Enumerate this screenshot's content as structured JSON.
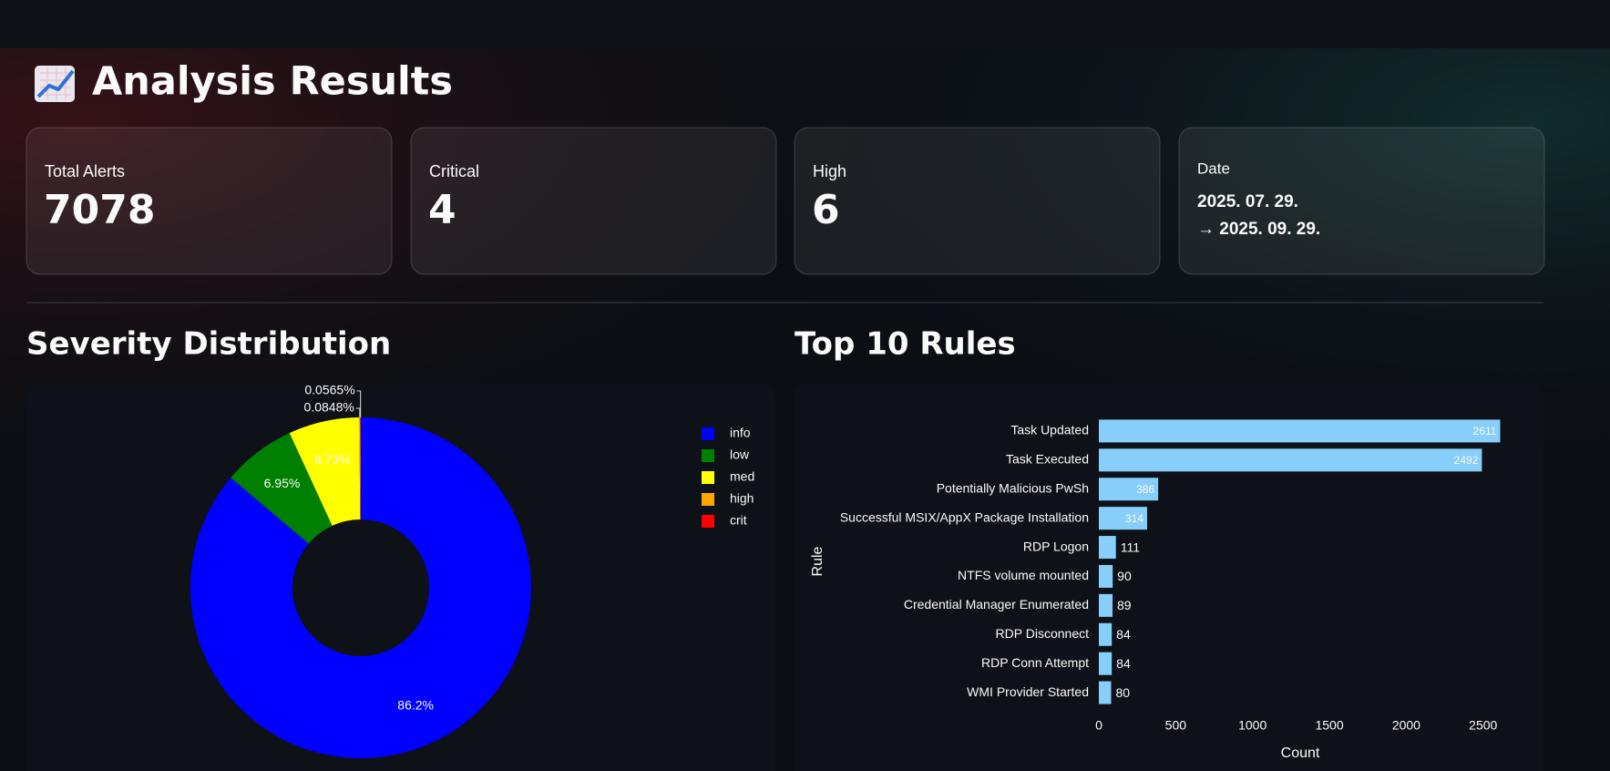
{
  "header": {
    "title": "Analysis Results"
  },
  "metrics": [
    {
      "label": "Total Alerts",
      "value": 7078
    },
    {
      "label": "Critical",
      "value": 4
    },
    {
      "label": "High",
      "value": 6
    }
  ],
  "date": {
    "label": "Date",
    "lines": [
      "2025. 07. 29.",
      "→ 2025. 09. 29."
    ]
  },
  "chart_data": [
    {
      "type": "pie",
      "title": "Severity Distribution",
      "categories": [
        "info",
        "low",
        "med",
        "high",
        "crit"
      ],
      "values": [
        86.2,
        6.95,
        6.73,
        0.0848,
        0.0565
      ],
      "value_labels": [
        "86.2%",
        "6.95%",
        "6.73%",
        "0.0848%",
        "0.0565%"
      ],
      "colors": [
        "#0000ff",
        "#008000",
        "#ffff00",
        "#ffa500",
        "#ff0000"
      ],
      "legend": "top-right"
    },
    {
      "type": "bar",
      "orientation": "horizontal",
      "title": "Top 10 Rules",
      "categories": [
        "Task Updated",
        "Task Executed",
        "Potentially Malicious PwSh",
        "Successful MSIX/AppX Package Installation",
        "RDP Logon",
        "NTFS volume mounted",
        "Credential Manager Enumerated",
        "RDP Disconnect",
        "RDP Conn Attempt",
        "WMI Provider Started"
      ],
      "values": [
        2611,
        2492,
        386,
        314,
        111,
        90,
        89,
        84,
        84,
        80
      ],
      "color": "#87cefa",
      "xlim": [
        0,
        2620
      ],
      "xticks": [
        0,
        500,
        1000,
        1500,
        2000,
        2500
      ],
      "xlabel": "Count",
      "ylabel": "Rule"
    }
  ]
}
